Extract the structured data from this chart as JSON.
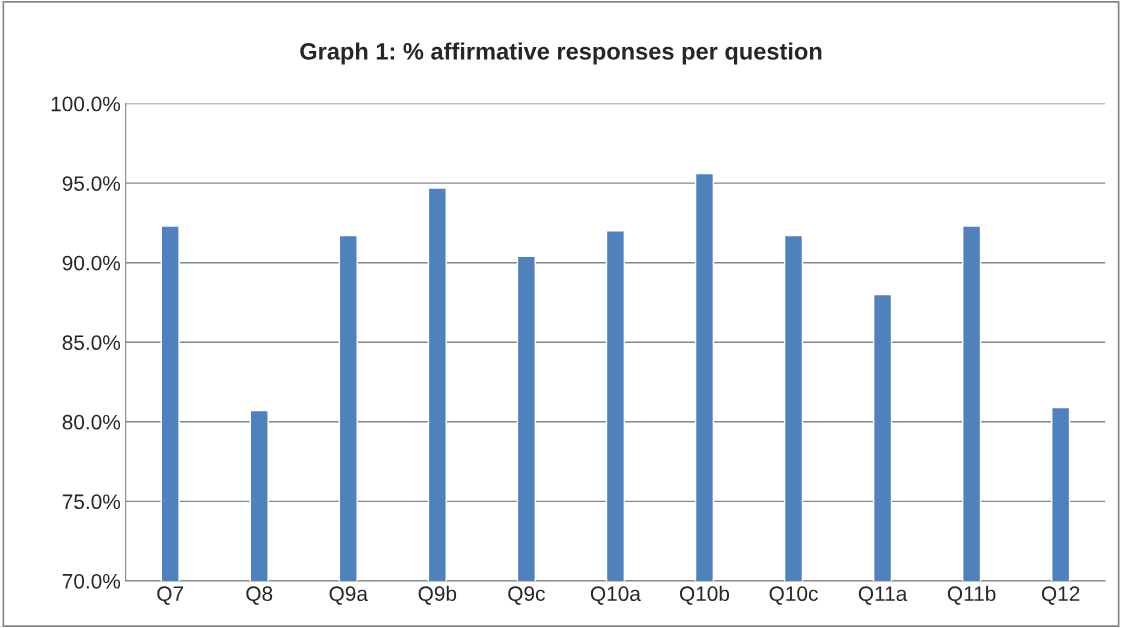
{
  "chart_data": {
    "type": "bar",
    "title": "Graph 1: % affirmative responses per question",
    "categories": [
      "Q7",
      "Q8",
      "Q9a",
      "Q9b",
      "Q9c",
      "Q10a",
      "Q10b",
      "Q10c",
      "Q11a",
      "Q11b",
      "Q12"
    ],
    "values": [
      92.3,
      80.7,
      91.7,
      94.7,
      90.4,
      92.0,
      95.6,
      91.7,
      88.0,
      92.3,
      80.9
    ],
    "color": "#4f81bd",
    "ylim": [
      70,
      100
    ],
    "yticks": [
      {
        "value": 70,
        "label": "70.0%"
      },
      {
        "value": 75,
        "label": "75.0%"
      },
      {
        "value": 80,
        "label": "80.0%"
      },
      {
        "value": 85,
        "label": "85.0%"
      },
      {
        "value": 90,
        "label": "90.0%"
      },
      {
        "value": 95,
        "label": "95.0%"
      },
      {
        "value": 100,
        "label": "100.0%"
      }
    ],
    "grid": "y",
    "legend": false
  }
}
